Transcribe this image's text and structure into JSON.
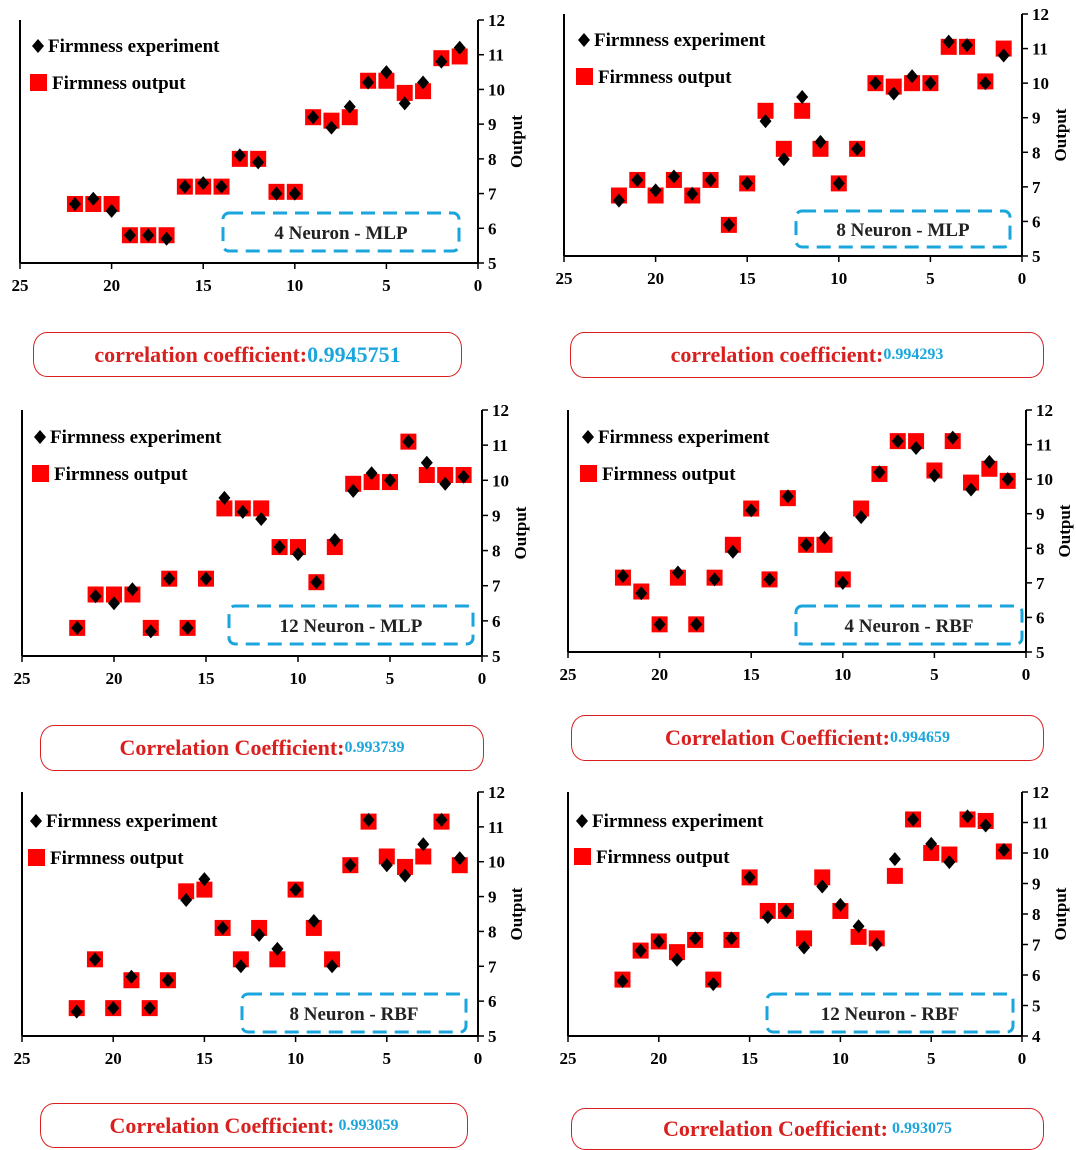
{
  "colors": {
    "experiment": "#000000",
    "output": "#ff0000",
    "box": "#1aa6dc",
    "label": "#d9201f",
    "value": "#1aa6dc"
  },
  "legend": {
    "experiment": "Firmness experiment",
    "output": "Firmness output"
  },
  "ylabel": "Output",
  "chart_data": [
    {
      "type": "scatter",
      "model_label": "4 Neuron - MLP",
      "xlim": [
        25,
        0
      ],
      "ylim": [
        5,
        12
      ],
      "xticks": [
        "25",
        "20",
        "15",
        "10",
        "5",
        "0"
      ],
      "yticks": [
        "5",
        "6",
        "7",
        "8",
        "9",
        "10",
        "11",
        "12"
      ],
      "series": [
        {
          "name": "Firmness experiment",
          "x": [
            22,
            21,
            20,
            19,
            18,
            17,
            16,
            15,
            14,
            13,
            12,
            11,
            10,
            9,
            8,
            7,
            6,
            5,
            4,
            3,
            2,
            1
          ],
          "y": [
            6.7,
            6.85,
            6.5,
            5.8,
            5.8,
            5.7,
            7.2,
            7.3,
            7.2,
            8.1,
            7.9,
            7.0,
            7.0,
            9.2,
            8.9,
            9.5,
            10.2,
            10.5,
            9.6,
            10.2,
            10.8,
            11.2
          ]
        },
        {
          "name": "Firmness output",
          "x": [
            22,
            21,
            20,
            19,
            18,
            17,
            16,
            15,
            14,
            13,
            12,
            11,
            10,
            9,
            8,
            7,
            6,
            5,
            4,
            3,
            2,
            1
          ],
          "y": [
            6.7,
            6.7,
            6.7,
            5.8,
            5.8,
            5.8,
            7.2,
            7.2,
            7.2,
            8.0,
            8.0,
            7.05,
            7.05,
            9.2,
            9.1,
            9.2,
            10.25,
            10.25,
            9.9,
            9.95,
            10.9,
            10.95
          ]
        }
      ],
      "coefficient": {
        "label": "correlation coefficient:",
        "value": "0.9945751"
      }
    },
    {
      "type": "scatter",
      "model_label": "8 Neuron - MLP",
      "xlim": [
        25,
        0
      ],
      "ylim": [
        5,
        12
      ],
      "xticks": [
        "25",
        "20",
        "15",
        "10",
        "5",
        "0"
      ],
      "yticks": [
        "5",
        "6",
        "7",
        "8",
        "9",
        "10",
        "11",
        "12"
      ],
      "series": [
        {
          "name": "Firmness experiment",
          "x": [
            22,
            21,
            20,
            19,
            18,
            17,
            16,
            15,
            14,
            13,
            12,
            11,
            10,
            9,
            8,
            7,
            6,
            5,
            4,
            3,
            2,
            1
          ],
          "y": [
            6.6,
            7.2,
            6.9,
            7.3,
            6.8,
            7.2,
            5.9,
            7.1,
            8.9,
            7.8,
            9.6,
            8.3,
            7.1,
            8.1,
            10.0,
            9.7,
            10.2,
            10.0,
            11.2,
            11.1,
            10.0,
            10.8
          ]
        },
        {
          "name": "Firmness output",
          "x": [
            22,
            21,
            20,
            19,
            18,
            17,
            16,
            15,
            14,
            13,
            12,
            11,
            10,
            9,
            8,
            7,
            6,
            5,
            4,
            3,
            2,
            1
          ],
          "y": [
            6.75,
            7.2,
            6.75,
            7.2,
            6.75,
            7.2,
            5.9,
            7.1,
            9.2,
            8.1,
            9.2,
            8.1,
            7.1,
            8.1,
            10.0,
            9.9,
            10.0,
            10.0,
            11.05,
            11.05,
            10.05,
            11.0
          ]
        }
      ],
      "coefficient": {
        "label": "correlation coefficient:",
        "value": "0.994293"
      }
    },
    {
      "type": "scatter",
      "model_label": "12 Neuron - MLP",
      "xlim": [
        25,
        0
      ],
      "ylim": [
        5,
        12
      ],
      "xticks": [
        "25",
        "20",
        "15",
        "10",
        "5",
        "0"
      ],
      "yticks": [
        "5",
        "6",
        "7",
        "8",
        "9",
        "10",
        "11",
        "12"
      ],
      "series": [
        {
          "name": "Firmness experiment",
          "x": [
            22,
            21,
            20,
            19,
            18,
            17,
            16,
            15,
            14,
            13,
            12,
            11,
            10,
            9,
            8,
            7,
            6,
            5,
            4,
            3,
            2,
            1
          ],
          "y": [
            5.8,
            6.7,
            6.5,
            6.9,
            5.7,
            7.2,
            5.8,
            7.2,
            9.5,
            9.1,
            8.9,
            8.1,
            7.9,
            7.1,
            8.3,
            9.7,
            10.2,
            10.0,
            11.1,
            10.5,
            9.9,
            10.1
          ]
        },
        {
          "name": "Firmness output",
          "x": [
            22,
            21,
            20,
            19,
            18,
            17,
            16,
            15,
            14,
            13,
            12,
            11,
            10,
            9,
            8,
            7,
            6,
            5,
            4,
            3,
            2,
            1
          ],
          "y": [
            5.8,
            6.75,
            6.75,
            6.75,
            5.8,
            7.2,
            5.8,
            7.2,
            9.2,
            9.2,
            9.2,
            8.1,
            8.1,
            7.1,
            8.1,
            9.9,
            9.95,
            9.95,
            11.1,
            10.15,
            10.15,
            10.15
          ]
        }
      ],
      "coefficient": {
        "label": "Correlation Coefficient:",
        "value": "0.993739"
      }
    },
    {
      "type": "scatter",
      "model_label": "4 Neuron - RBF",
      "xlim": [
        25,
        0
      ],
      "ylim": [
        5,
        12
      ],
      "xticks": [
        "25",
        "20",
        "15",
        "10",
        "5",
        "0"
      ],
      "yticks": [
        "5",
        "6",
        "7",
        "8",
        "9",
        "10",
        "11",
        "12"
      ],
      "series": [
        {
          "name": "Firmness experiment",
          "x": [
            22,
            21,
            20,
            19,
            18,
            17,
            16,
            15,
            14,
            13,
            12,
            11,
            10,
            9,
            8,
            7,
            6,
            5,
            4,
            3,
            2,
            1
          ],
          "y": [
            7.2,
            6.7,
            5.8,
            7.3,
            5.8,
            7.1,
            7.9,
            9.1,
            7.1,
            9.5,
            8.1,
            8.3,
            7.0,
            8.9,
            10.2,
            11.1,
            10.9,
            10.1,
            11.2,
            9.7,
            10.5,
            10.0
          ]
        },
        {
          "name": "Firmness output",
          "x": [
            22,
            21,
            20,
            19,
            18,
            17,
            16,
            15,
            14,
            13,
            12,
            11,
            10,
            9,
            8,
            7,
            6,
            5,
            4,
            3,
            2,
            1
          ],
          "y": [
            7.15,
            6.75,
            5.8,
            7.15,
            5.8,
            7.15,
            8.1,
            9.15,
            7.1,
            9.45,
            8.1,
            8.1,
            7.1,
            9.15,
            10.15,
            11.1,
            11.1,
            10.25,
            11.1,
            9.9,
            10.3,
            9.95
          ]
        }
      ],
      "coefficient": {
        "label": "Correlation Coefficient:",
        "value": "0.994659"
      }
    },
    {
      "type": "scatter",
      "model_label": "8 Neuron - RBF",
      "xlim": [
        25,
        0
      ],
      "ylim": [
        5,
        12
      ],
      "xticks": [
        "25",
        "20",
        "15",
        "10",
        "5",
        "0"
      ],
      "yticks": [
        "5",
        "6",
        "7",
        "8",
        "9",
        "10",
        "11",
        "12"
      ],
      "series": [
        {
          "name": "Firmness experiment",
          "x": [
            22,
            21,
            20,
            19,
            18,
            17,
            16,
            15,
            14,
            13,
            12,
            11,
            10,
            9,
            8,
            7,
            6,
            5,
            4,
            3,
            2,
            1
          ],
          "y": [
            5.7,
            7.2,
            5.8,
            6.7,
            5.8,
            6.6,
            8.9,
            9.5,
            8.1,
            7.0,
            7.9,
            7.5,
            9.2,
            8.3,
            7.0,
            9.9,
            11.2,
            9.9,
            9.6,
            10.5,
            11.2,
            10.1
          ]
        },
        {
          "name": "Firmness output",
          "x": [
            22,
            21,
            20,
            19,
            18,
            17,
            16,
            15,
            14,
            13,
            12,
            11,
            10,
            9,
            8,
            7,
            6,
            5,
            4,
            3,
            2,
            1
          ],
          "y": [
            5.8,
            7.2,
            5.8,
            6.6,
            5.8,
            6.6,
            9.15,
            9.2,
            8.1,
            7.2,
            8.1,
            7.2,
            9.2,
            8.1,
            7.2,
            9.9,
            11.15,
            10.15,
            9.85,
            10.15,
            11.15,
            9.9
          ]
        }
      ],
      "coefficient": {
        "label": "Correlation Coefficient:",
        "value": " 0.993059"
      }
    },
    {
      "type": "scatter",
      "model_label": "12 Neuron - RBF",
      "xlim": [
        25,
        0
      ],
      "ylim": [
        4,
        12
      ],
      "xticks": [
        "25",
        "20",
        "15",
        "10",
        "5",
        "0"
      ],
      "yticks": [
        "4",
        "5",
        "6",
        "7",
        "8",
        "9",
        "10",
        "11",
        "12"
      ],
      "series": [
        {
          "name": "Firmness experiment",
          "x": [
            22,
            21,
            20,
            19,
            18,
            17,
            16,
            15,
            14,
            13,
            12,
            11,
            10,
            9,
            8,
            7,
            6,
            5,
            4,
            3,
            2,
            1
          ],
          "y": [
            5.8,
            6.8,
            7.1,
            6.5,
            7.2,
            5.7,
            7.2,
            9.2,
            7.9,
            8.1,
            6.9,
            8.9,
            8.3,
            7.6,
            7.0,
            9.8,
            11.1,
            10.3,
            9.7,
            11.2,
            10.9,
            10.1
          ]
        },
        {
          "name": "Firmness output",
          "x": [
            22,
            21,
            20,
            19,
            18,
            17,
            16,
            15,
            14,
            13,
            12,
            11,
            10,
            9,
            8,
            7,
            6,
            5,
            4,
            3,
            2,
            1
          ],
          "y": [
            5.85,
            6.8,
            7.1,
            6.75,
            7.15,
            5.85,
            7.15,
            9.2,
            8.1,
            8.1,
            7.2,
            9.2,
            8.1,
            7.25,
            7.2,
            9.25,
            11.1,
            10.0,
            9.95,
            11.1,
            11.05,
            10.05
          ]
        }
      ],
      "coefficient": {
        "label": "Correlation Coefficient:",
        "value": " 0.993075"
      }
    }
  ]
}
